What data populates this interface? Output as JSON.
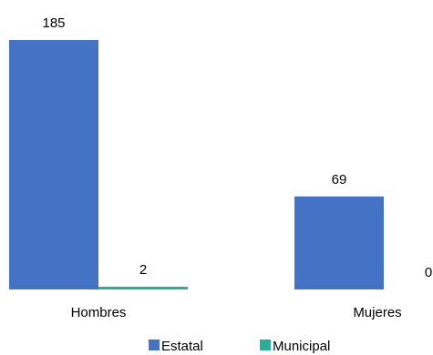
{
  "chart_data": {
    "type": "bar",
    "categories": [
      "Hombres",
      "Mujeres"
    ],
    "series": [
      {
        "name": "Estatal",
        "values": [
          185,
          69
        ],
        "color": "#4472C4"
      },
      {
        "name": "Municipal",
        "values": [
          2,
          0
        ],
        "color": "#2AAE9A"
      }
    ],
    "data_labels": [
      [
        "185",
        "69"
      ],
      [
        "2",
        "0"
      ]
    ],
    "ylim": [
      0,
      185
    ],
    "legend": "bottom",
    "grid": false
  }
}
